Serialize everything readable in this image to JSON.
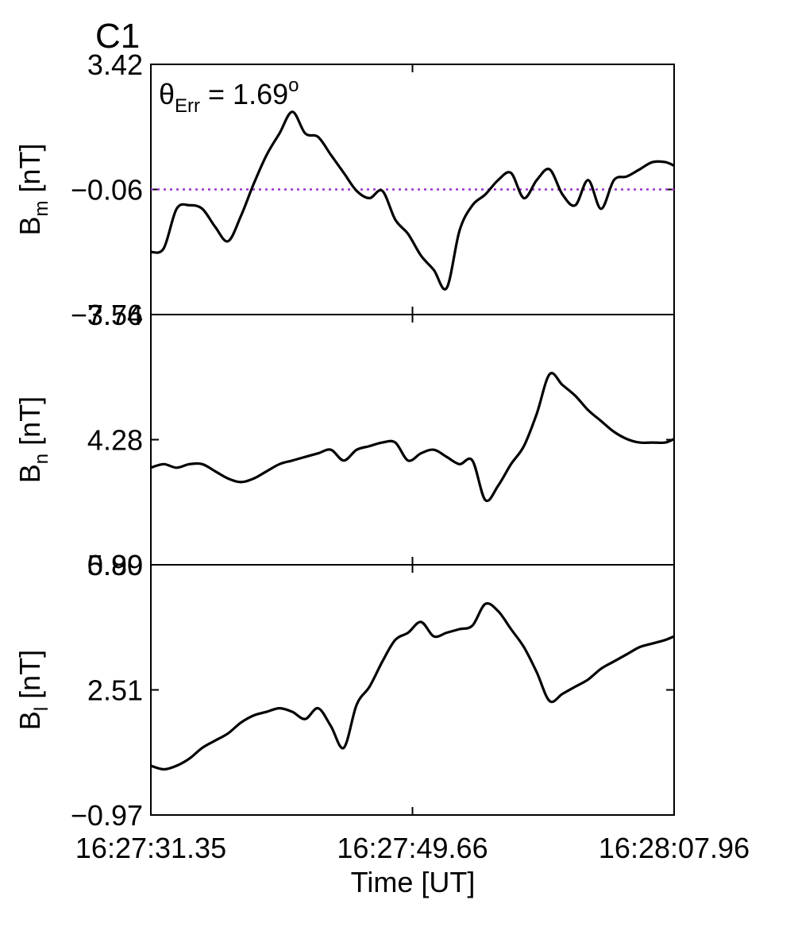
{
  "figure_label": "C1",
  "colors": {
    "label": "#e8120c",
    "trace": "#000000",
    "reference": "#9a30d0",
    "frame": "#000000"
  },
  "xaxis": {
    "label": "Time [UT]",
    "ticks": [
      "16:27:31.35",
      "16:27:49.66",
      "16:28:07.96"
    ]
  },
  "chart_data": [
    {
      "type": "line",
      "ylabel_main": "B",
      "ylabel_sub": "m",
      "ylabel_unit": " [nT]",
      "yticks": [
        "3.42",
        "−0.06",
        "−3.54"
      ],
      "ylim": [
        -3.54,
        3.42
      ],
      "annotation": {
        "theta": "θ",
        "sub": "Err",
        "text": " =  1.69",
        "sup": "o"
      },
      "reference_line": -0.06,
      "x": [
        0.0,
        0.9,
        1.8,
        2.7,
        3.6,
        4.5,
        5.4,
        6.3,
        7.2,
        8.1,
        9.0,
        9.9,
        10.8,
        11.7,
        12.6,
        13.5,
        14.4,
        15.3,
        16.2,
        17.1,
        18.0,
        18.9,
        19.8,
        20.7,
        21.6,
        22.5,
        23.4,
        24.3,
        25.2,
        26.1,
        27.0,
        27.9,
        28.8,
        29.7,
        30.6,
        31.5,
        32.4,
        33.3,
        34.2,
        35.1,
        36.0,
        36.61
      ],
      "values": [
        -1.8,
        -1.7,
        -0.6,
        -0.5,
        -0.6,
        -1.1,
        -1.5,
        -0.8,
        0.1,
        0.9,
        1.5,
        2.1,
        1.5,
        1.4,
        0.9,
        0.4,
        -0.1,
        -0.3,
        -0.1,
        -0.9,
        -1.3,
        -1.9,
        -2.3,
        -2.8,
        -1.2,
        -0.5,
        -0.2,
        0.2,
        0.4,
        -0.3,
        0.2,
        0.5,
        -0.2,
        -0.5,
        0.2,
        -0.6,
        0.2,
        0.3,
        0.5,
        0.7,
        0.7,
        0.6
      ]
    },
    {
      "type": "line",
      "ylabel_main": "B",
      "ylabel_sub": "n",
      "ylabel_unit": " [nT]",
      "yticks": [
        "7.76",
        "4.28",
        "0.80"
      ],
      "ylim": [
        0.8,
        7.76
      ],
      "x": [
        0.0,
        0.9,
        1.8,
        2.7,
        3.6,
        4.5,
        5.4,
        6.3,
        7.2,
        8.1,
        9.0,
        9.9,
        10.8,
        11.7,
        12.6,
        13.5,
        14.4,
        15.3,
        16.2,
        17.1,
        18.0,
        18.9,
        19.8,
        20.7,
        21.6,
        22.5,
        23.4,
        24.3,
        25.2,
        26.1,
        27.0,
        27.9,
        28.8,
        29.7,
        30.6,
        31.5,
        32.4,
        33.3,
        34.2,
        35.1,
        36.0,
        36.61
      ],
      "values": [
        3.5,
        3.6,
        3.5,
        3.6,
        3.6,
        3.4,
        3.2,
        3.1,
        3.2,
        3.4,
        3.6,
        3.7,
        3.8,
        3.9,
        4.0,
        3.7,
        4.0,
        4.1,
        4.2,
        4.2,
        3.7,
        3.9,
        4.0,
        3.8,
        3.6,
        3.7,
        2.6,
        3.0,
        3.6,
        4.1,
        5.0,
        6.1,
        5.8,
        5.5,
        5.1,
        4.8,
        4.5,
        4.3,
        4.2,
        4.2,
        4.2,
        4.3
      ]
    },
    {
      "type": "line",
      "ylabel_main": "B",
      "ylabel_sub": "l",
      "ylabel_unit": " [nT]",
      "yticks": [
        "5.99",
        "2.51",
        "−0.97"
      ],
      "ylim": [
        -0.97,
        5.99
      ],
      "x": [
        0.0,
        0.9,
        1.8,
        2.7,
        3.6,
        4.5,
        5.4,
        6.3,
        7.2,
        8.1,
        9.0,
        9.9,
        10.8,
        11.7,
        12.6,
        13.5,
        14.4,
        15.3,
        16.2,
        17.1,
        18.0,
        18.9,
        19.8,
        20.7,
        21.6,
        22.5,
        23.4,
        24.3,
        25.2,
        26.1,
        27.0,
        27.9,
        28.8,
        29.7,
        30.6,
        31.5,
        32.4,
        33.3,
        34.2,
        35.1,
        36.0,
        36.61
      ],
      "values": [
        0.4,
        0.3,
        0.4,
        0.6,
        0.9,
        1.1,
        1.3,
        1.6,
        1.8,
        1.9,
        2.0,
        1.9,
        1.7,
        2.0,
        1.5,
        0.9,
        2.1,
        2.6,
        3.3,
        3.9,
        4.1,
        4.4,
        4.0,
        4.1,
        4.2,
        4.3,
        4.9,
        4.7,
        4.2,
        3.7,
        3.0,
        2.2,
        2.4,
        2.6,
        2.8,
        3.1,
        3.3,
        3.5,
        3.7,
        3.8,
        3.9,
        4.0
      ]
    }
  ]
}
